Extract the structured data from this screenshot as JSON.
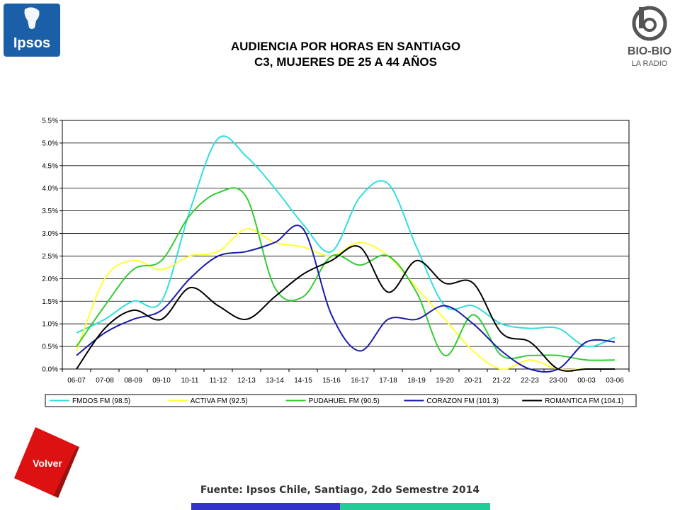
{
  "header": {
    "title_line1": "AUDIENCIA POR HORAS EN SANTIAGO",
    "title_line2": "C3, MUJERES DE 25 A 44 AÑOS"
  },
  "logos": {
    "ipsos_text": "Ipsos",
    "biobio_text": "BIO-BIO",
    "biobio_sub": "LA RADIO"
  },
  "buttons": {
    "volver_label": "Volver"
  },
  "footer": {
    "source": "Fuente: Ipsos Chile, Santiago, 2do Semestre 2014"
  },
  "colors": {
    "ipsos_blue": "#1a5fa8",
    "fmdos": "#33dddd",
    "activa": "#ffff33",
    "pudahuel": "#33cc33",
    "corazon": "#1a1aaa",
    "romantica": "#000000",
    "volver_red": "#dd1111"
  },
  "chart_data": {
    "type": "line",
    "title": "",
    "xlabel": "",
    "ylabel": "",
    "categories": [
      "06-07",
      "07-08",
      "08-09",
      "09-10",
      "10-11",
      "11-12",
      "12-13",
      "13-14",
      "14-15",
      "15-16",
      "16-17",
      "17-18",
      "18-19",
      "19-20",
      "20-21",
      "21-22",
      "22-23",
      "23-00",
      "00-03",
      "03-06"
    ],
    "ylim": [
      0,
      0.055
    ],
    "yticks": [
      "0.0%",
      "0.5%",
      "1.0%",
      "1.5%",
      "2.0%",
      "2.5%",
      "3.0%",
      "3.5%",
      "4.0%",
      "4.5%",
      "5.0%",
      "5.5%"
    ],
    "grid": true,
    "legend_position": "bottom",
    "series": [
      {
        "name": "FMDOS FM (98.5)",
        "color": "#33dddd",
        "values": [
          0.008,
          0.011,
          0.015,
          0.015,
          0.035,
          0.051,
          0.047,
          0.04,
          0.032,
          0.026,
          0.038,
          0.041,
          0.027,
          0.014,
          0.014,
          0.01,
          0.009,
          0.009,
          0.005,
          0.007
        ]
      },
      {
        "name": "ACTIVA FM (92.5)",
        "color": "#ffff33",
        "values": [
          0.004,
          0.02,
          0.024,
          0.022,
          0.025,
          0.026,
          0.031,
          0.028,
          0.027,
          0.025,
          0.028,
          0.025,
          0.018,
          0.011,
          0.004,
          0.0,
          0.002,
          0.0,
          0.0,
          0.0
        ]
      },
      {
        "name": "PUDAHUEL FM (90.5)",
        "color": "#33cc33",
        "values": [
          0.005,
          0.014,
          0.022,
          0.024,
          0.034,
          0.039,
          0.038,
          0.018,
          0.016,
          0.025,
          0.023,
          0.025,
          0.017,
          0.003,
          0.012,
          0.003,
          0.003,
          0.003,
          0.002,
          0.002
        ]
      },
      {
        "name": "CORAZON FM (101.3)",
        "color": "#1a1aaa",
        "values": [
          0.003,
          0.008,
          0.011,
          0.013,
          0.02,
          0.025,
          0.026,
          0.028,
          0.031,
          0.012,
          0.004,
          0.011,
          0.011,
          0.014,
          0.01,
          0.004,
          0.0,
          0.0,
          0.006,
          0.006
        ]
      },
      {
        "name": "ROMANTICA FM (104.1)",
        "color": "#000000",
        "values": [
          0.0,
          0.009,
          0.013,
          0.011,
          0.018,
          0.014,
          0.011,
          0.016,
          0.021,
          0.024,
          0.027,
          0.017,
          0.024,
          0.019,
          0.019,
          0.008,
          0.006,
          0.0,
          0.0,
          0.0
        ]
      }
    ]
  }
}
